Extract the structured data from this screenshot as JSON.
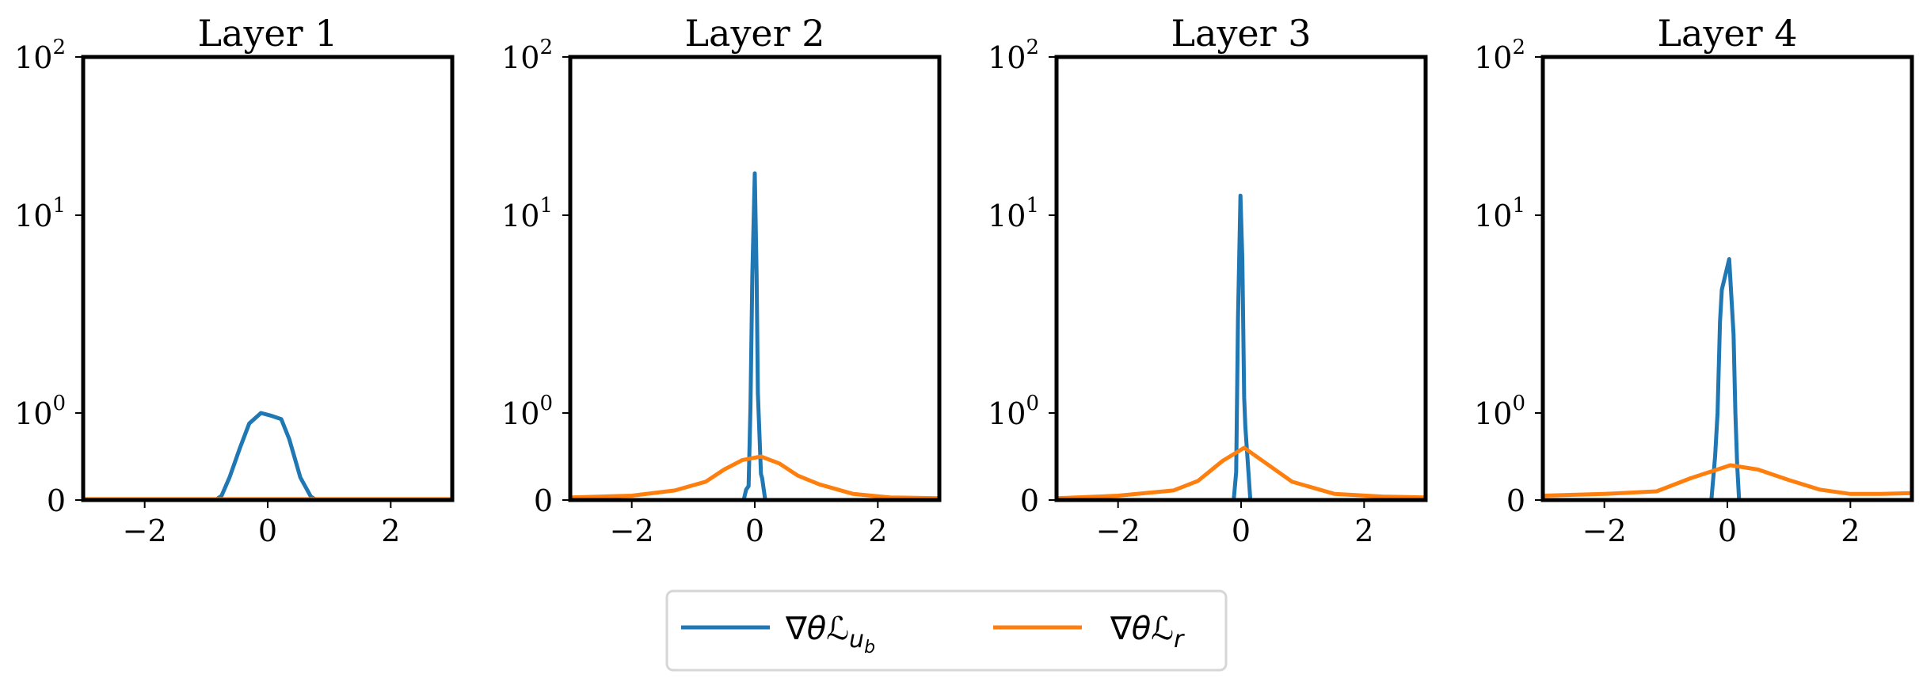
{
  "chart_data": [
    {
      "type": "line",
      "title": "Layer 1",
      "xlim": [
        -3,
        3
      ],
      "ylim": [
        0,
        100
      ],
      "yscale": "symlog",
      "xticks": [
        "−2",
        "0",
        "2"
      ],
      "xtick_values": [
        -2,
        0,
        2
      ],
      "yticks": [
        {
          "value": 0,
          "base": "0",
          "exp": ""
        },
        {
          "value": 1,
          "base": "10",
          "exp": "0"
        },
        {
          "value": 10,
          "base": "10",
          "exp": "1"
        },
        {
          "value": 100,
          "base": "10",
          "exp": "2"
        }
      ],
      "series": [
        {
          "name": "grad_ub",
          "points": [
            [
              -3,
              0
            ],
            [
              -0.85,
              0
            ],
            [
              -0.75,
              0.05
            ],
            [
              -0.62,
              0.26
            ],
            [
              -0.45,
              0.6
            ],
            [
              -0.3,
              0.88
            ],
            [
              -0.11,
              1.0
            ],
            [
              0.05,
              0.97
            ],
            [
              0.22,
              0.93
            ],
            [
              0.35,
              0.7
            ],
            [
              0.53,
              0.26
            ],
            [
              0.7,
              0.04
            ],
            [
              0.79,
              0
            ],
            [
              3,
              0
            ]
          ]
        },
        {
          "name": "grad_r",
          "points": [
            [
              -3,
              0.01
            ],
            [
              3,
              0.01
            ]
          ]
        }
      ]
    },
    {
      "type": "line",
      "title": "Layer 2",
      "xlim": [
        -3,
        3
      ],
      "ylim": [
        0,
        100
      ],
      "yscale": "symlog",
      "xticks": [
        "−2",
        "0",
        "2"
      ],
      "xtick_values": [
        -2,
        0,
        2
      ],
      "yticks": [
        {
          "value": 0,
          "base": "0",
          "exp": ""
        },
        {
          "value": 1,
          "base": "10",
          "exp": "0"
        },
        {
          "value": 10,
          "base": "10",
          "exp": "1"
        },
        {
          "value": 100,
          "base": "10",
          "exp": "2"
        }
      ],
      "series": [
        {
          "name": "grad_ub",
          "points": [
            [
              -3,
              0
            ],
            [
              -0.18,
              0
            ],
            [
              -0.14,
              0.12
            ],
            [
              -0.1,
              0.16
            ],
            [
              -0.07,
              1.1
            ],
            [
              -0.04,
              5
            ],
            [
              0,
              18.4
            ],
            [
              0.03,
              5
            ],
            [
              0.05,
              1.26
            ],
            [
              0.1,
              0.3
            ],
            [
              0.12,
              0.25
            ],
            [
              0.17,
              0
            ],
            [
              3,
              0
            ]
          ]
        },
        {
          "name": "grad_r",
          "points": [
            [
              -3,
              0.03
            ],
            [
              -2,
              0.05
            ],
            [
              -1.3,
              0.11
            ],
            [
              -0.8,
              0.21
            ],
            [
              -0.5,
              0.35
            ],
            [
              -0.2,
              0.46
            ],
            [
              0.1,
              0.5
            ],
            [
              0.4,
              0.42
            ],
            [
              0.7,
              0.28
            ],
            [
              1.05,
              0.18
            ],
            [
              1.6,
              0.07
            ],
            [
              2.2,
              0.03
            ],
            [
              3,
              0.02
            ]
          ]
        }
      ]
    },
    {
      "type": "line",
      "title": "Layer 3",
      "xlim": [
        -3,
        3
      ],
      "ylim": [
        0,
        100
      ],
      "yscale": "symlog",
      "xticks": [
        "−2",
        "0",
        "2"
      ],
      "xtick_values": [
        -2,
        0,
        2
      ],
      "yticks": [
        {
          "value": 0,
          "base": "0",
          "exp": ""
        },
        {
          "value": 1,
          "base": "10",
          "exp": "0"
        },
        {
          "value": 10,
          "base": "10",
          "exp": "1"
        },
        {
          "value": 100,
          "base": "10",
          "exp": "2"
        }
      ],
      "series": [
        {
          "name": "grad_ub",
          "points": [
            [
              -3,
              0
            ],
            [
              -0.12,
              0
            ],
            [
              -0.08,
              0.32
            ],
            [
              -0.05,
              3
            ],
            [
              -0.01,
              13.3
            ],
            [
              0.02,
              6
            ],
            [
              0.05,
              1.2
            ],
            [
              0.07,
              0.84
            ],
            [
              0.15,
              0
            ],
            [
              3,
              0
            ]
          ]
        },
        {
          "name": "grad_r",
          "points": [
            [
              -3,
              0.02
            ],
            [
              -2,
              0.05
            ],
            [
              -1.1,
              0.11
            ],
            [
              -0.7,
              0.22
            ],
            [
              -0.3,
              0.45
            ],
            [
              0.05,
              0.6
            ],
            [
              0.35,
              0.45
            ],
            [
              0.83,
              0.21
            ],
            [
              1.52,
              0.07
            ],
            [
              2.3,
              0.04
            ],
            [
              3,
              0.03
            ]
          ]
        }
      ]
    },
    {
      "type": "line",
      "title": "Layer 4",
      "xlim": [
        -3,
        3
      ],
      "ylim": [
        0,
        100
      ],
      "yscale": "symlog",
      "xticks": [
        "−2",
        "0",
        "2"
      ],
      "xtick_values": [
        -2,
        0,
        2
      ],
      "yticks": [
        {
          "value": 0,
          "base": "0",
          "exp": ""
        },
        {
          "value": 1,
          "base": "10",
          "exp": "0"
        },
        {
          "value": 10,
          "base": "10",
          "exp": "1"
        },
        {
          "value": 100,
          "base": "10",
          "exp": "2"
        }
      ],
      "series": [
        {
          "name": "grad_ub",
          "points": [
            [
              -3,
              0
            ],
            [
              -0.26,
              0
            ],
            [
              -0.2,
              0.5
            ],
            [
              -0.16,
              1
            ],
            [
              -0.12,
              2.9
            ],
            [
              -0.09,
              4.2
            ],
            [
              0.03,
              6.0
            ],
            [
              0.1,
              2.5
            ],
            [
              0.13,
              1
            ],
            [
              0.16,
              0.4
            ],
            [
              0.19,
              0
            ],
            [
              3,
              0
            ]
          ]
        },
        {
          "name": "grad_r",
          "points": [
            [
              -3,
              0.05
            ],
            [
              -2,
              0.07
            ],
            [
              -1.15,
              0.1
            ],
            [
              -0.6,
              0.25
            ],
            [
              0.05,
              0.4
            ],
            [
              0.5,
              0.35
            ],
            [
              1,
              0.23
            ],
            [
              1.5,
              0.12
            ],
            [
              2,
              0.07
            ],
            [
              2.5,
              0.07
            ],
            [
              3,
              0.08
            ]
          ]
        }
      ]
    }
  ],
  "legend": {
    "placement": "bottom-center",
    "entries": [
      {
        "label": "∇θℒ",
        "sub": "u",
        "subsub": "b",
        "color": "#1f77b4"
      },
      {
        "label": "∇θℒ",
        "sub": "r",
        "subsub": "",
        "color": "#ff7f0e"
      }
    ]
  },
  "colors": {
    "grad_ub": "#1f77b4",
    "grad_r": "#ff7f0e"
  }
}
